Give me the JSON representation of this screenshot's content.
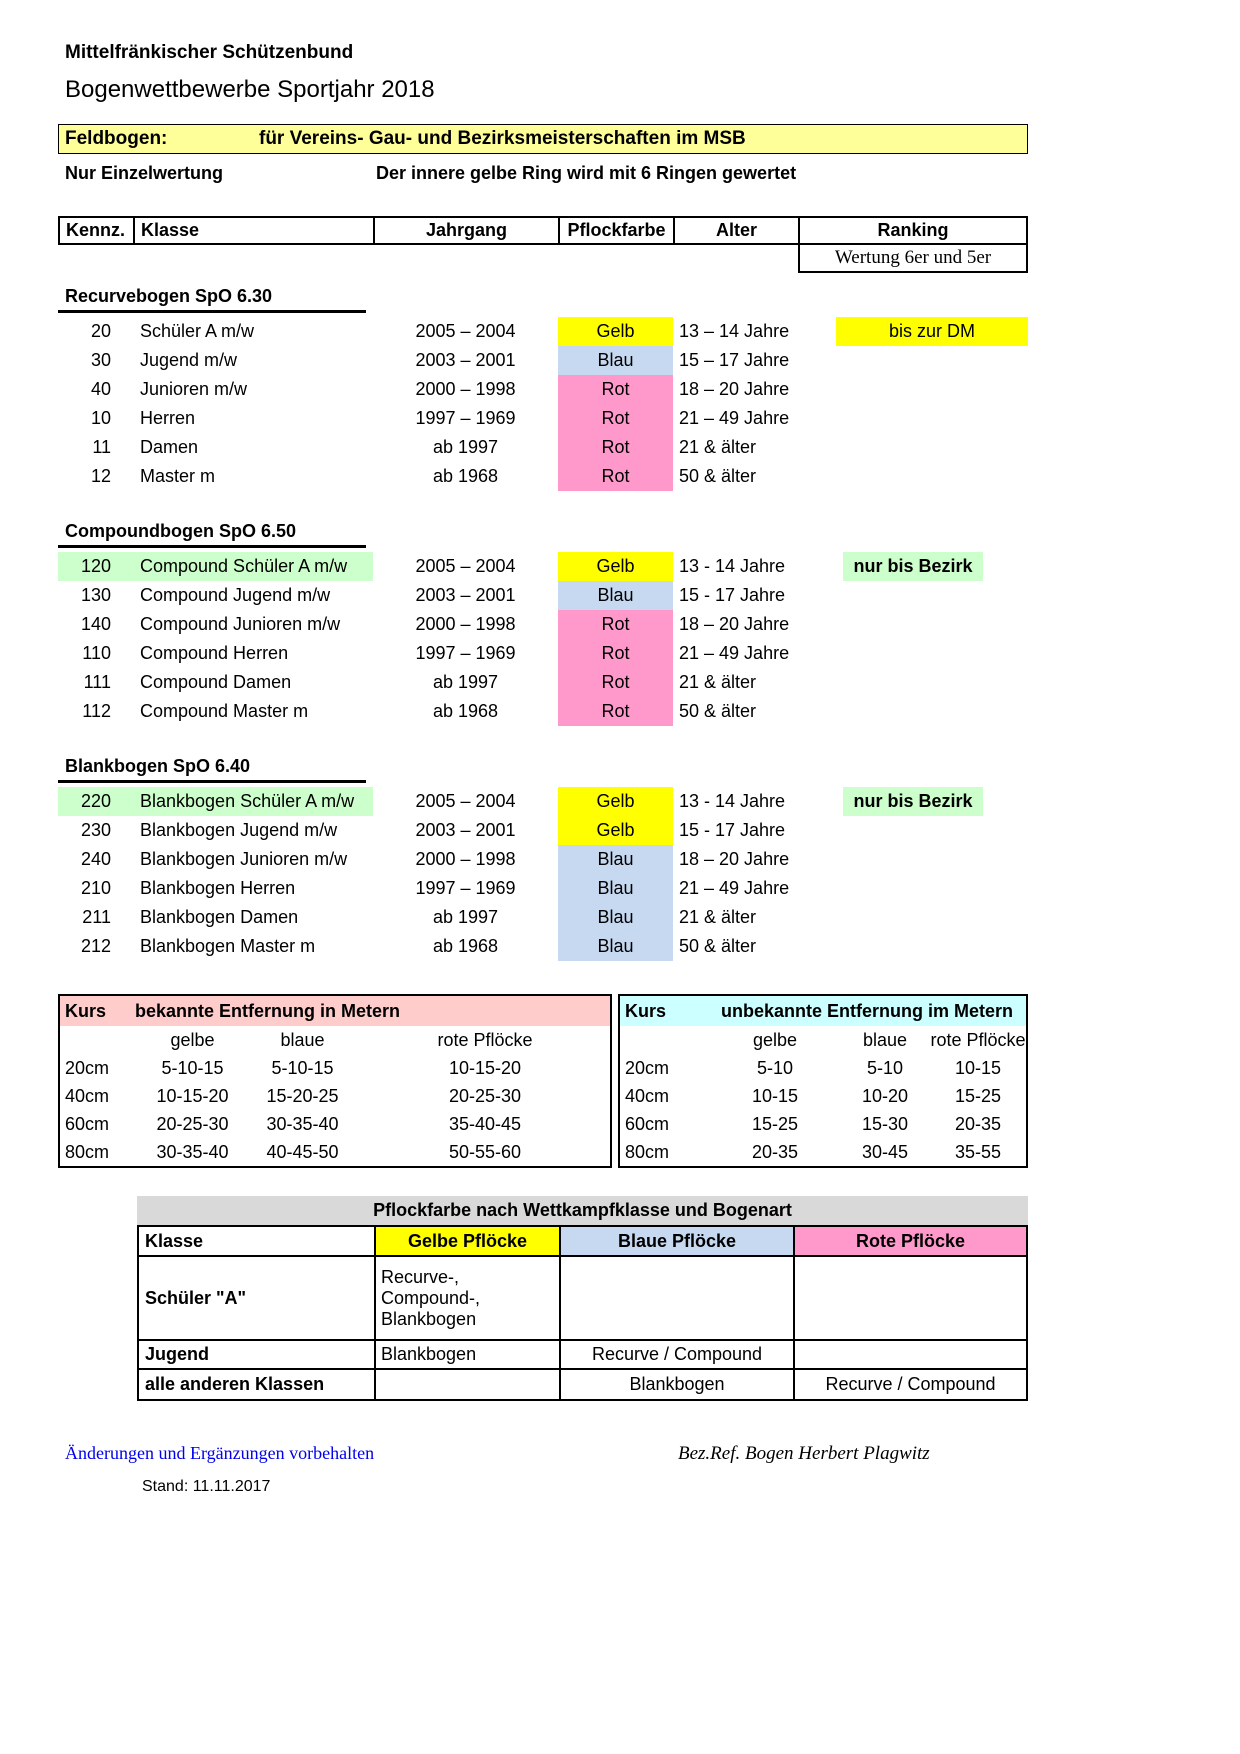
{
  "page": {
    "org_title": "Mittelfränkischer Schützenbund",
    "doc_title": "Bogenwettbewerbe Sportjahr 2018"
  },
  "banner": {
    "label": "Feldbogen:",
    "text": "für Vereins- Gau- und Bezirksmeisterschaften im MSB",
    "bg_color": "#FFFF99"
  },
  "subnote": {
    "left": "Nur Einzelwertung",
    "right": "Der innere gelbe Ring wird mit 6 Ringen gewertet"
  },
  "class_table": {
    "columns": [
      "Kennz.",
      "Klasse",
      "Jahrgang",
      "Pflockfarbe",
      "Alter",
      "Ranking"
    ],
    "ranking_subnote": "Wertung 6er und 5er",
    "colors": {
      "gelb": "#FFFF00",
      "blau": "#C6D9F1",
      "rot": "#FF99CC",
      "green_highlight": "#CCFFCC"
    },
    "sections": [
      {
        "heading": "Recurvebogen  SpO 6.30",
        "rows": [
          {
            "kennz": "20",
            "klasse": "Schüler A m/w",
            "jahrgang": "2005 – 2004",
            "pflockfarbe": "Gelb",
            "pflock_color": "gelb",
            "alter": "13 – 14 Jahre",
            "ranking": "bis zur DM",
            "ranking_style": "yellow"
          },
          {
            "kennz": "30",
            "klasse": "Jugend m/w",
            "jahrgang": "2003 – 2001",
            "pflockfarbe": "Blau",
            "pflock_color": "blau",
            "alter": "15 – 17 Jahre"
          },
          {
            "kennz": "40",
            "klasse": "Junioren m/w",
            "jahrgang": "2000 – 1998",
            "pflockfarbe": "Rot",
            "pflock_color": "rot",
            "alter": "18 – 20 Jahre"
          },
          {
            "kennz": "10",
            "klasse": "Herren",
            "jahrgang": "1997 – 1969",
            "pflockfarbe": "Rot",
            "pflock_color": "rot",
            "alter": "21 – 49 Jahre"
          },
          {
            "kennz": "11",
            "klasse": "Damen",
            "jahrgang": "ab 1997",
            "pflockfarbe": "Rot",
            "pflock_color": "rot",
            "alter": "21 & älter"
          },
          {
            "kennz": "12",
            "klasse": "Master m",
            "jahrgang": "ab 1968",
            "pflockfarbe": "Rot",
            "pflock_color": "rot",
            "alter": "50 & älter"
          }
        ]
      },
      {
        "heading": "Compoundbogen SpO 6.50",
        "rows": [
          {
            "kennz": "120",
            "klasse": "Compound Schüler A m/w",
            "jahrgang": "2005 – 2004",
            "pflockfarbe": "Gelb",
            "pflock_color": "gelb",
            "alter": "13 - 14 Jahre",
            "ranking": "nur bis Bezirk",
            "ranking_style": "green",
            "row_highlight": true
          },
          {
            "kennz": "130",
            "klasse": "Compound Jugend m/w",
            "jahrgang": "2003 – 2001",
            "pflockfarbe": "Blau",
            "pflock_color": "blau",
            "alter": "15 - 17 Jahre"
          },
          {
            "kennz": "140",
            "klasse": "Compound Junioren m/w",
            "jahrgang": "2000 – 1998",
            "pflockfarbe": "Rot",
            "pflock_color": "rot",
            "alter": "18 – 20 Jahre"
          },
          {
            "kennz": "110",
            "klasse": "Compound Herren",
            "jahrgang": "1997 – 1969",
            "pflockfarbe": "Rot",
            "pflock_color": "rot",
            "alter": "21 – 49 Jahre"
          },
          {
            "kennz": "111",
            "klasse": "Compound Damen",
            "jahrgang": "ab 1997",
            "pflockfarbe": "Rot",
            "pflock_color": "rot",
            "alter": "21 & älter"
          },
          {
            "kennz": "112",
            "klasse": "Compound Master m",
            "jahrgang": "ab 1968",
            "pflockfarbe": "Rot",
            "pflock_color": "rot",
            "alter": "50 & älter"
          }
        ]
      },
      {
        "heading": "Blankbogen  SpO 6.40",
        "rows": [
          {
            "kennz": "220",
            "klasse": "Blankbogen Schüler A m/w",
            "jahrgang": "2005 – 2004",
            "pflockfarbe": "Gelb",
            "pflock_color": "gelb",
            "alter": "13 - 14 Jahre",
            "ranking": "nur bis Bezirk",
            "ranking_style": "green",
            "row_highlight": true
          },
          {
            "kennz": "230",
            "klasse": "Blankbogen Jugend m/w",
            "jahrgang": "2003 – 2001",
            "pflockfarbe": "Gelb",
            "pflock_color": "gelb",
            "alter": "15 - 17 Jahre"
          },
          {
            "kennz": "240",
            "klasse": "Blankbogen Junioren m/w",
            "jahrgang": "2000 – 1998",
            "pflockfarbe": "Blau",
            "pflock_color": "blau",
            "alter": "18 – 20 Jahre"
          },
          {
            "kennz": "210",
            "klasse": "Blankbogen Herren",
            "jahrgang": "1997 – 1969",
            "pflockfarbe": "Blau",
            "pflock_color": "blau",
            "alter": "21 – 49 Jahre"
          },
          {
            "kennz": "211",
            "klasse": "Blankbogen Damen",
            "jahrgang": "ab 1997",
            "pflockfarbe": "Blau",
            "pflock_color": "blau",
            "alter": "21 & älter"
          },
          {
            "kennz": "212",
            "klasse": "Blankbogen Master m",
            "jahrgang": "ab 1968",
            "pflockfarbe": "Blau",
            "pflock_color": "blau",
            "alter": "50 & älter"
          }
        ]
      }
    ]
  },
  "distance_tables": [
    {
      "kurs_label": "Kurs",
      "title": "bekannte Entfernung  in Metern",
      "header_bg": "#FFCCCC",
      "col_headers": [
        "gelbe",
        "blaue",
        "rote Pflöcke"
      ],
      "rows": [
        {
          "kurs": "20cm",
          "values": [
            "5-10-15",
            "5-10-15",
            "10-15-20"
          ]
        },
        {
          "kurs": "40cm",
          "values": [
            "10-15-20",
            "15-20-25",
            "20-25-30"
          ]
        },
        {
          "kurs": "60cm",
          "values": [
            "20-25-30",
            "30-35-40",
            "35-40-45"
          ]
        },
        {
          "kurs": "80cm",
          "values": [
            "30-35-40",
            "40-45-50",
            "50-55-60"
          ]
        }
      ]
    },
    {
      "kurs_label": "Kurs",
      "title": "unbekannte Entfernung  im Metern",
      "header_bg": "#CCFFFF",
      "col_headers": [
        "gelbe",
        "blaue",
        "rote Pflöcke"
      ],
      "rows": [
        {
          "kurs": "20cm",
          "values": [
            "5-10",
            "5-10",
            "10-15"
          ]
        },
        {
          "kurs": "40cm",
          "values": [
            "10-15",
            "10-20",
            "15-25"
          ]
        },
        {
          "kurs": "60cm",
          "values": [
            "15-25",
            "15-30",
            "20-35"
          ]
        },
        {
          "kurs": "80cm",
          "values": [
            "20-35",
            "30-45",
            "35-55"
          ]
        }
      ]
    }
  ],
  "pflock_table": {
    "caption": "Pflockfarbe nach Wettkampfklasse und Bogenart",
    "caption_bg": "#D9D9D9",
    "columns": [
      {
        "label": "Klasse",
        "bg": "#FFFFFF"
      },
      {
        "label": "Gelbe Pflöcke",
        "bg": "#FFFF00"
      },
      {
        "label": "Blaue Pflöcke",
        "bg": "#C6D9F1"
      },
      {
        "label": "Rote Pflöcke",
        "bg": "#FF99CC"
      }
    ],
    "rows": [
      {
        "klasse": "Schüler \"A\"",
        "gelb": "Recurve-,\nCompound-,\nBlankbogen",
        "blau": "",
        "rot": "",
        "gelb_align": "left"
      },
      {
        "klasse": "Jugend",
        "gelb": "Blankbogen",
        "blau": "Recurve / Compound",
        "rot": "",
        "gelb_align": "left"
      },
      {
        "klasse": "alle anderen Klassen",
        "gelb": "",
        "blau": "Blankbogen",
        "rot": "Recurve / Compound"
      }
    ]
  },
  "footer": {
    "note": "Änderungen und Ergänzungen vorbehalten",
    "note_color": "#0000EE",
    "signature": "Bez.Ref. Bogen Herbert Plagwitz",
    "stand": "Stand: 11.11.2017"
  }
}
